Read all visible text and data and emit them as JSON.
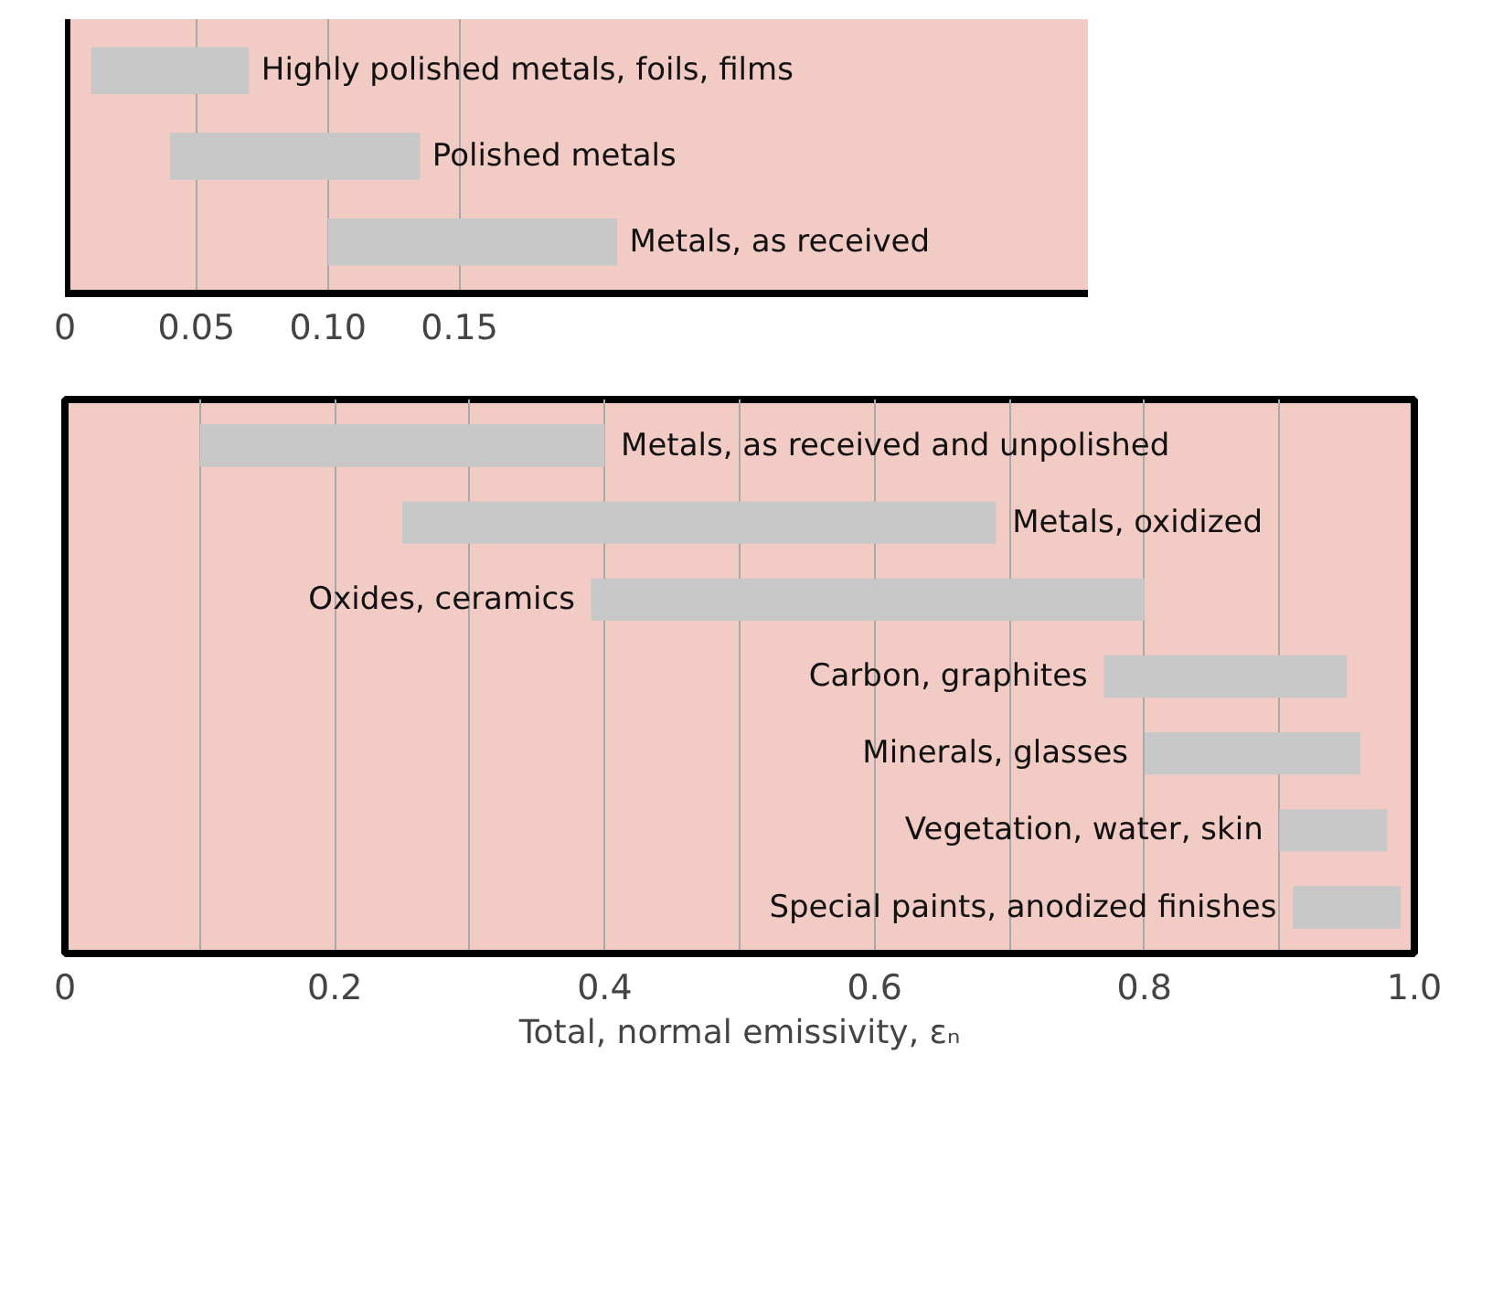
{
  "chart_data": [
    {
      "type": "bar",
      "orientation": "horizontal",
      "categories": [
        "Highly polished metals, foils, films",
        "Polished metals",
        "Metals, as received"
      ],
      "base": [
        0.01,
        0.04,
        0.1
      ],
      "values": [
        0.06,
        0.095,
        0.11
      ],
      "color": "#c8c8c8",
      "xlim": [
        0,
        0.39
      ],
      "xticks": [
        0,
        0.05,
        {
          "value": 0.1,
          "label": "0.10"
        },
        {
          "value": 0.15,
          "label": "0.15"
        }
      ],
      "grid": "x",
      "tick_labels": "x"
    },
    {
      "type": "bar",
      "orientation": "horizontal",
      "categories": [
        "Metals, as received and unpolished",
        "Metals, oxidized",
        "Oxides, ceramics",
        "Carbon, graphites",
        "Minerals, glasses",
        "Vegetation, water, skin",
        "Special paints, anodized finishes"
      ],
      "base": [
        0.1,
        0.25,
        0.39,
        0.77,
        0.8,
        0.9,
        0.91
      ],
      "values": [
        0.3,
        0.44,
        0.41,
        0.18,
        0.16,
        0.08,
        0.08
      ],
      "color": "#c8c8c8",
      "xlim": [
        0,
        1
      ],
      "xticks": [
        0,
        {
          "value": 0.1,
          "label": null
        },
        0.2,
        {
          "value": 0.3,
          "label": null
        },
        0.4,
        {
          "value": 0.5,
          "label": null
        },
        0.6,
        {
          "value": 0.7,
          "label": null
        },
        0.8,
        {
          "value": 0.9,
          "label": null
        },
        {
          "value": 1,
          "label": "1.0"
        }
      ],
      "xlabel": "Total, normal emissivity, εₙ",
      "grid": "x",
      "tick_labels": "x"
    }
  ]
}
